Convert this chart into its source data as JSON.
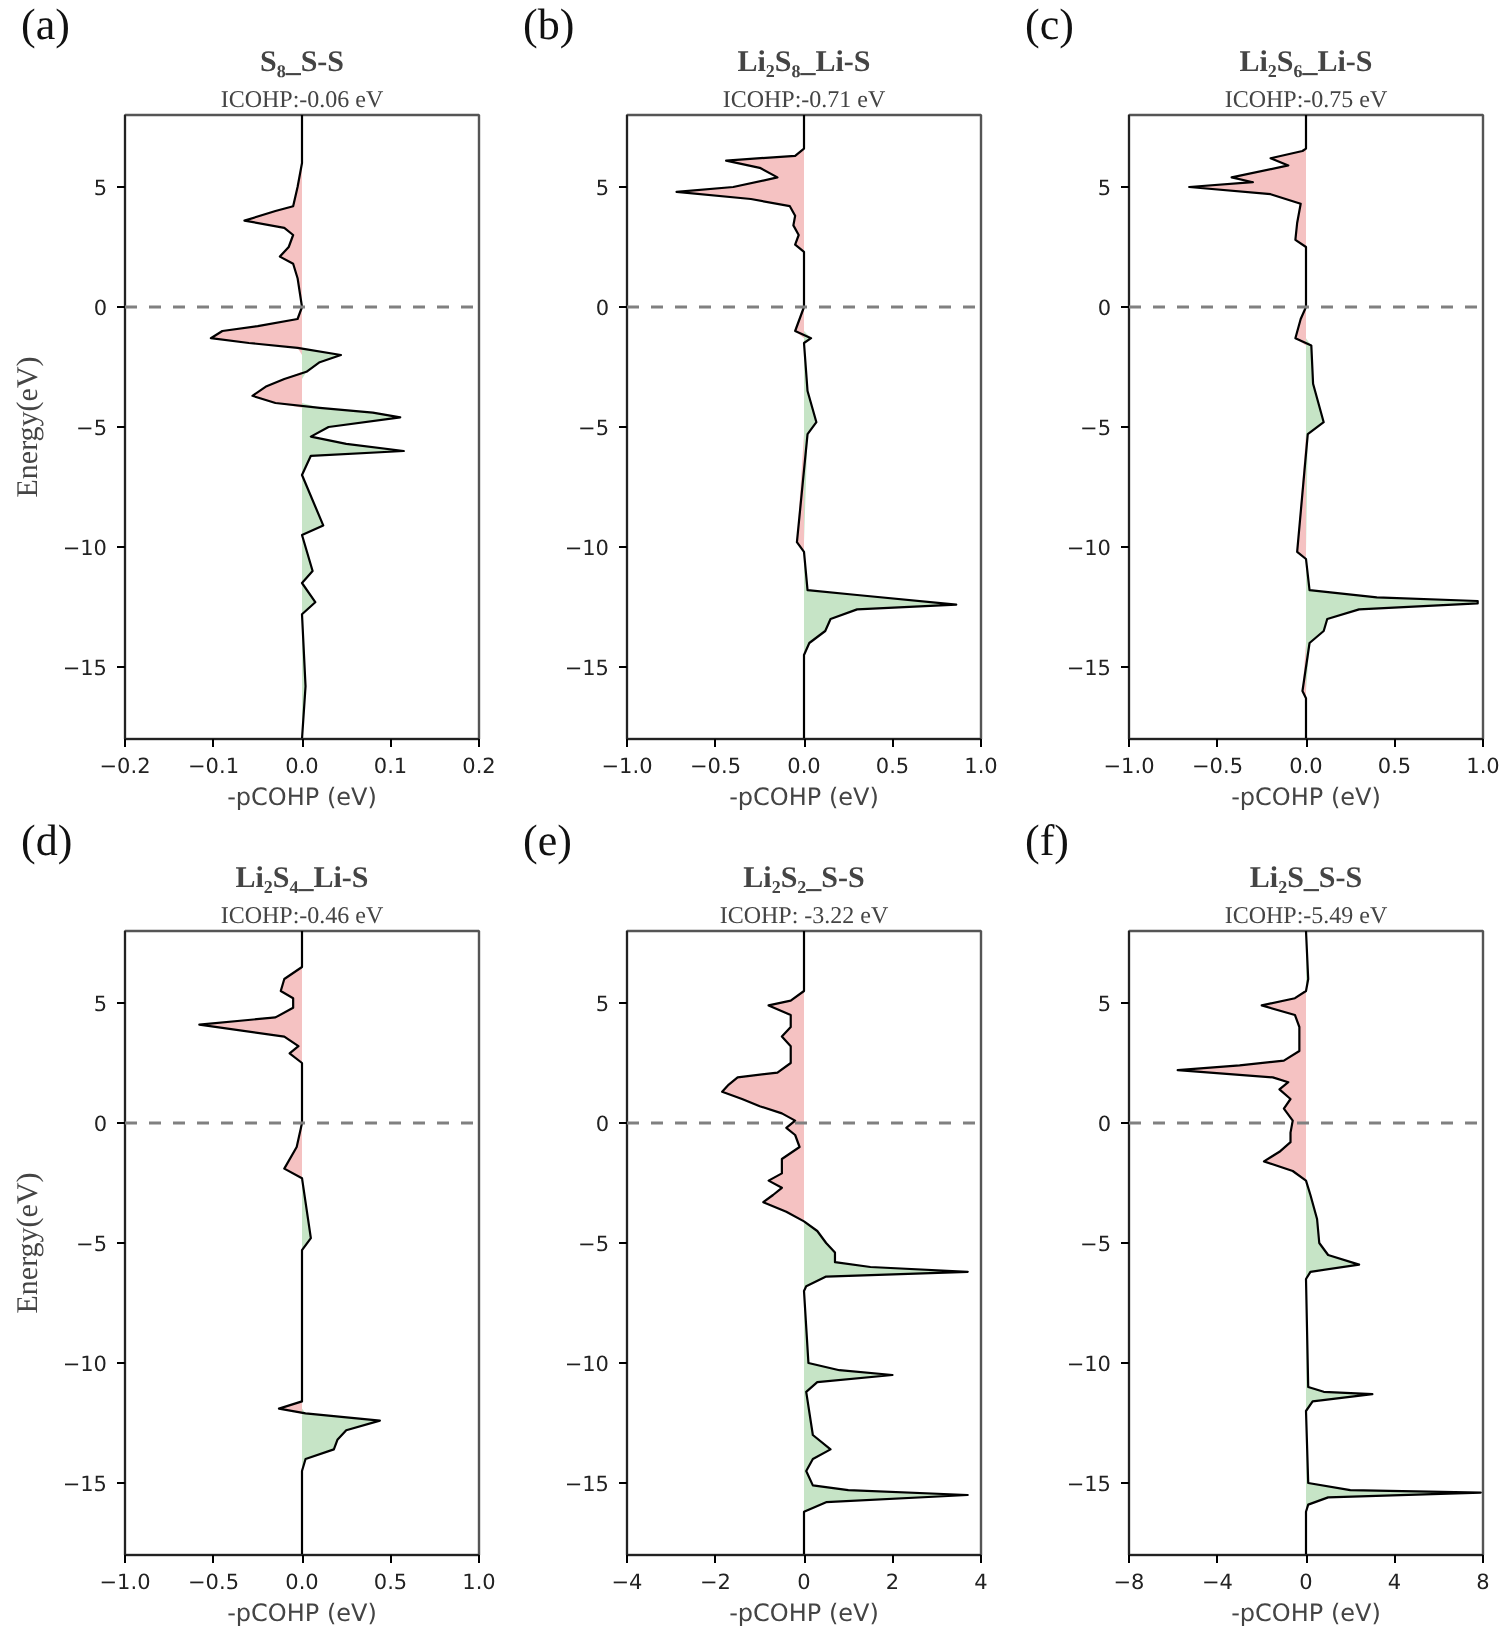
{
  "chart_data": [
    {
      "type": "area",
      "orientation": "horizontal",
      "title": "S₈_S-S",
      "subtitle": "ICOHP:-0.06 eV",
      "xlabel": "-pCOHP (eV)",
      "ylabel": "Energy(eV)",
      "annotations": [
        "(a)"
      ],
      "xlim": [
        -0.2,
        0.2
      ],
      "xticks": [
        -0.2,
        -0.1,
        {
          "value": 0,
          "label": "0.0"
        },
        0.1,
        0.2
      ],
      "ylim": [
        -18,
        8
      ],
      "yticks": [
        -15,
        -10,
        -5,
        0,
        5
      ],
      "ref_lines": [
        {
          "axis": "y",
          "value": 0,
          "color": "#808080",
          "line_style": "dashed"
        }
      ],
      "x": [
        8,
        6,
        5,
        4.2,
        4.0,
        3.6,
        3.3,
        3.0,
        2.5,
        2.1,
        1.8,
        1.2,
        0,
        -0.5,
        -0.8,
        -1.0,
        -1.3,
        -1.5,
        -1.7,
        -2.0,
        -2.3,
        -2.7,
        -3.0,
        -3.3,
        -3.7,
        -4.0,
        -4.2,
        -4.4,
        -4.6,
        -5.0,
        -5.4,
        -5.7,
        -6.0,
        -6.2,
        -7,
        -9.1,
        -9.5,
        -11,
        -11.5,
        -12.3,
        -12.8,
        -15.8,
        -18
      ],
      "series": [
        {
          "color": "#f5c2c2",
          "values": [
            0,
            0,
            -0.005,
            -0.01,
            -0.03,
            -0.065,
            -0.02,
            -0.01,
            -0.015,
            -0.025,
            -0.01,
            -0.005,
            0,
            -0.005,
            -0.05,
            -0.09,
            -0.103,
            -0.06,
            -0.005,
            0,
            0,
            0,
            -0.02,
            -0.04,
            -0.056,
            -0.03,
            0,
            0,
            0,
            0,
            0,
            0,
            0,
            0,
            0,
            0,
            0,
            0,
            0,
            0,
            0,
            0,
            0
          ]
        },
        {
          "color": "#c6e4c6",
          "values": [
            0,
            0,
            0,
            0,
            0,
            0,
            0,
            0,
            0,
            0,
            0,
            0,
            0,
            0,
            0,
            0,
            0,
            0,
            0,
            0.044,
            0.02,
            0.005,
            0,
            0,
            0,
            0,
            0.02,
            0.08,
            0.111,
            0.03,
            0.01,
            0.05,
            0.115,
            0.01,
            0,
            0.024,
            0,
            0.012,
            0,
            0.015,
            0,
            0.004,
            0
          ]
        },
        {
          "type": "line",
          "color": "#000000",
          "values": [
            0,
            0,
            -0.005,
            -0.01,
            -0.03,
            -0.065,
            -0.02,
            -0.01,
            -0.015,
            -0.025,
            -0.01,
            -0.005,
            0,
            -0.005,
            -0.05,
            -0.09,
            -0.103,
            -0.06,
            -0.005,
            0.044,
            0.02,
            0.005,
            -0.02,
            -0.04,
            -0.056,
            -0.03,
            0.02,
            0.08,
            0.111,
            0.03,
            0.01,
            0.05,
            0.115,
            0.01,
            0,
            0.024,
            0,
            0.012,
            0,
            0.015,
            0,
            0.004,
            0
          ]
        }
      ]
    },
    {
      "type": "area",
      "orientation": "horizontal",
      "title": "Li₂S₈_Li-S",
      "subtitle": "ICOHP:-0.71 eV",
      "xlabel": "-pCOHP (eV)",
      "annotations": [
        "(b)"
      ],
      "xlim": [
        -1,
        1
      ],
      "xticks": [
        {
          "value": -1,
          "label": "−1.0"
        },
        -0.5,
        {
          "value": 0,
          "label": "0.0"
        },
        0.5,
        {
          "value": 1,
          "label": "1.0"
        }
      ],
      "ylim": [
        -18,
        8
      ],
      "yticks": [
        -15,
        -10,
        -5,
        0,
        5
      ],
      "ref_lines": [
        {
          "axis": "y",
          "value": 0,
          "color": "#808080",
          "line_style": "dashed"
        }
      ],
      "x": [
        8,
        6.6,
        6.3,
        6.1,
        5.8,
        5.4,
        5.0,
        4.8,
        4.5,
        4.2,
        3.8,
        3.4,
        3.0,
        2.6,
        2.3,
        0,
        -1.0,
        -1.3,
        -1.5,
        -3.5,
        -4.8,
        -5.3,
        -9.8,
        -10.2,
        -11.8,
        -12.0,
        -12.4,
        -12.6,
        -13.0,
        -13.5,
        -14,
        -14.5,
        -18
      ],
      "series": [
        {
          "color": "#f5c2c2",
          "values": [
            0,
            0,
            -0.05,
            -0.44,
            -0.25,
            -0.15,
            -0.4,
            -0.72,
            -0.3,
            -0.08,
            -0.05,
            -0.06,
            -0.03,
            -0.05,
            0,
            0,
            -0.05,
            0,
            0,
            0,
            0,
            0,
            -0.04,
            0,
            0,
            0,
            0,
            0,
            0,
            0,
            0,
            0,
            0
          ]
        },
        {
          "color": "#c6e4c6",
          "values": [
            0,
            0,
            0,
            0,
            0,
            0,
            0,
            0,
            0,
            0,
            0,
            0,
            0,
            0,
            0,
            0,
            0,
            0.04,
            0,
            0.02,
            0.07,
            0.02,
            0,
            0,
            0.02,
            0.3,
            0.86,
            0.3,
            0.15,
            0.12,
            0.03,
            0,
            0
          ]
        },
        {
          "type": "line",
          "color": "#000000",
          "values": [
            0,
            0,
            -0.05,
            -0.44,
            -0.25,
            -0.15,
            -0.4,
            -0.72,
            -0.3,
            -0.08,
            -0.05,
            -0.06,
            -0.03,
            -0.05,
            0,
            0,
            -0.05,
            0.04,
            0,
            0.02,
            0.07,
            0.02,
            -0.04,
            0,
            0.02,
            0.3,
            0.86,
            0.3,
            0.15,
            0.12,
            0.03,
            0,
            0
          ]
        }
      ]
    },
    {
      "type": "area",
      "orientation": "horizontal",
      "title": "Li₂S₆_Li-S",
      "subtitle": "ICOHP:-0.75 eV",
      "xlabel": "-pCOHP (eV)",
      "annotations": [
        "(c)"
      ],
      "xlim": [
        -1,
        1
      ],
      "xticks": [
        {
          "value": -1,
          "label": "−1.0"
        },
        -0.5,
        {
          "value": 0,
          "label": "0.0"
        },
        0.5,
        {
          "value": 1,
          "label": "1.0"
        }
      ],
      "ylim": [
        -18,
        8
      ],
      "yticks": [
        -15,
        -10,
        -5,
        0,
        5
      ],
      "ref_lines": [
        {
          "axis": "y",
          "value": 0,
          "color": "#808080",
          "line_style": "dashed"
        }
      ],
      "x": [
        8,
        6.6,
        6.5,
        6.2,
        5.9,
        5.4,
        5.2,
        5.0,
        4.7,
        4.3,
        3.5,
        2.8,
        2.5,
        0,
        -0.5,
        -1.3,
        -1.6,
        -3.2,
        -4.8,
        -5.3,
        -10.2,
        -10.5,
        -11.8,
        -12.1,
        -12.25,
        -12.35,
        -12.6,
        -13.0,
        -13.5,
        -14.0,
        -16,
        -16.3,
        -18
      ],
      "series": [
        {
          "color": "#f5c2c2",
          "values": [
            0,
            0,
            -0.02,
            -0.2,
            -0.1,
            -0.42,
            -0.3,
            -0.66,
            -0.2,
            -0.03,
            -0.05,
            -0.06,
            0,
            0,
            -0.03,
            -0.06,
            0,
            0,
            0,
            0,
            -0.05,
            0,
            0,
            0,
            0,
            0,
            0,
            0,
            0,
            0,
            -0.02,
            0,
            0
          ]
        },
        {
          "color": "#c6e4c6",
          "values": [
            0,
            0,
            0,
            0,
            0,
            0,
            0,
            0,
            0,
            0,
            0,
            0,
            0,
            0,
            0,
            0,
            0.03,
            0.04,
            0.1,
            0.01,
            0,
            0,
            0.02,
            0.4,
            0.97,
            0.97,
            0.3,
            0.12,
            0.1,
            0.02,
            0,
            0,
            0
          ]
        },
        {
          "type": "line",
          "color": "#000000",
          "values": [
            0,
            0,
            -0.02,
            -0.2,
            -0.1,
            -0.42,
            -0.3,
            -0.66,
            -0.2,
            -0.03,
            -0.05,
            -0.06,
            0,
            0,
            -0.03,
            -0.06,
            0.03,
            0.04,
            0.1,
            0.01,
            -0.05,
            0,
            0.02,
            0.4,
            0.97,
            0.97,
            0.3,
            0.12,
            0.1,
            0.02,
            -0.02,
            0,
            0
          ]
        }
      ]
    },
    {
      "type": "area",
      "orientation": "horizontal",
      "title": "Li₂S₄_Li-S",
      "subtitle": "ICOHP:-0.46 eV",
      "xlabel": "-pCOHP (eV)",
      "ylabel": "Energy(eV)",
      "annotations": [
        "(d)"
      ],
      "xlim": [
        -1,
        1
      ],
      "xticks": [
        {
          "value": -1,
          "label": "−1.0"
        },
        -0.5,
        {
          "value": 0,
          "label": "0.0"
        },
        0.5,
        {
          "value": 1,
          "label": "1.0"
        }
      ],
      "ylim": [
        -18,
        8
      ],
      "yticks": [
        -15,
        -10,
        -5,
        0,
        5
      ],
      "ref_lines": [
        {
          "axis": "y",
          "value": 0,
          "color": "#808080",
          "line_style": "dashed"
        }
      ],
      "x": [
        8,
        6.5,
        6.0,
        5.5,
        5.2,
        4.8,
        4.4,
        4.1,
        3.6,
        3.2,
        2.9,
        2.5,
        0,
        -1.0,
        -1.9,
        -2.3,
        -4.8,
        -5.3,
        -11.6,
        -11.9,
        -12.1,
        -12.4,
        -12.8,
        -13.2,
        -13.6,
        -14.0,
        -14.5,
        -18
      ],
      "series": [
        {
          "color": "#f5c2c2",
          "values": [
            0,
            0,
            -0.1,
            -0.12,
            -0.05,
            -0.05,
            -0.15,
            -0.58,
            -0.1,
            -0.02,
            -0.07,
            0,
            0,
            -0.03,
            -0.1,
            0,
            0,
            0,
            0,
            -0.13,
            0,
            0,
            0,
            0,
            0,
            0,
            0,
            0
          ]
        },
        {
          "color": "#c6e4c6",
          "values": [
            0,
            0,
            0,
            0,
            0,
            0,
            0,
            0,
            0,
            0,
            0,
            0,
            0,
            0,
            0,
            0,
            0.05,
            0,
            0,
            0,
            0.02,
            0.44,
            0.25,
            0.2,
            0.18,
            0.02,
            0,
            0
          ]
        },
        {
          "type": "line",
          "color": "#000000",
          "values": [
            0,
            0,
            -0.1,
            -0.12,
            -0.05,
            -0.05,
            -0.15,
            -0.58,
            -0.1,
            -0.02,
            -0.07,
            0,
            0,
            -0.03,
            -0.1,
            0,
            0.05,
            0,
            0,
            -0.13,
            0.02,
            0.44,
            0.25,
            0.2,
            0.18,
            0.02,
            0,
            0
          ]
        }
      ]
    },
    {
      "type": "area",
      "orientation": "horizontal",
      "title": "Li₂S₂_S-S",
      "subtitle": "ICOHP: -3.22 eV",
      "xlabel": "-pCOHP (eV)",
      "annotations": [
        "(e)"
      ],
      "xlim": [
        -4,
        4
      ],
      "xticks": [
        -4,
        -2,
        0,
        2,
        4
      ],
      "ylim": [
        -18,
        8
      ],
      "yticks": [
        -15,
        -10,
        -5,
        0,
        5
      ],
      "ref_lines": [
        {
          "axis": "y",
          "value": 0,
          "color": "#808080",
          "line_style": "dashed"
        }
      ],
      "x": [
        8,
        5.5,
        5.1,
        4.9,
        4.5,
        4.0,
        3.6,
        3.2,
        2.5,
        2.1,
        1.9,
        1.6,
        1.3,
        1.0,
        0.7,
        0.4,
        0.1,
        -0.2,
        -0.5,
        -1,
        -1.5,
        -2.1,
        -2.4,
        -2.7,
        -3.0,
        -3.3,
        -3.7,
        -4.1,
        -4.5,
        -5.0,
        -5.4,
        -5.8,
        -6.0,
        -6.2,
        -6.4,
        -6.8,
        -7,
        -10,
        -10.3,
        -10.5,
        -10.8,
        -11.2,
        -13,
        -13.6,
        -14.0,
        -14.5,
        -15.1,
        -15.3,
        -15.5,
        -15.8,
        -16.2,
        -18
      ],
      "series": [
        {
          "color": "#f5c2c2",
          "values": [
            0,
            0,
            -0.3,
            -0.8,
            -0.3,
            -0.3,
            -0.5,
            -0.3,
            -0.3,
            -0.6,
            -1.5,
            -1.7,
            -1.85,
            -1.4,
            -1.0,
            -0.5,
            -0.2,
            -0.4,
            -0.2,
            -0.1,
            -0.5,
            -0.5,
            -0.8,
            -0.5,
            -0.7,
            -0.92,
            -0.4,
            0,
            0,
            0,
            0,
            0,
            0,
            0,
            0,
            0,
            0,
            0,
            0,
            0,
            0,
            0,
            0,
            0,
            0,
            0,
            0,
            0,
            0,
            0,
            0,
            0
          ]
        },
        {
          "color": "#c6e4c6",
          "values": [
            0,
            0,
            0,
            0,
            0,
            0,
            0,
            0,
            0,
            0,
            0,
            0,
            0,
            0,
            0,
            0,
            0,
            0,
            0,
            0,
            0,
            0,
            0,
            0,
            0,
            0,
            0,
            0,
            0.3,
            0.5,
            0.7,
            0.7,
            1.5,
            3.7,
            0.5,
            0.05,
            0,
            0.1,
            0.8,
            2.0,
            0.3,
            0.05,
            0.2,
            0.6,
            0.2,
            0.05,
            0.2,
            1.0,
            3.7,
            0.5,
            0,
            0
          ]
        },
        {
          "type": "line",
          "color": "#000000",
          "values": [
            0,
            0,
            -0.3,
            -0.8,
            -0.3,
            -0.3,
            -0.5,
            -0.3,
            -0.3,
            -0.6,
            -1.5,
            -1.7,
            -1.85,
            -1.4,
            -1.0,
            -0.5,
            -0.2,
            -0.4,
            -0.2,
            -0.1,
            -0.5,
            -0.5,
            -0.8,
            -0.5,
            -0.7,
            -0.92,
            -0.4,
            0,
            0.3,
            0.5,
            0.7,
            0.7,
            1.5,
            3.7,
            0.5,
            0.05,
            0,
            0.1,
            0.8,
            2.0,
            0.3,
            0.05,
            0.2,
            0.6,
            0.2,
            0.05,
            0.2,
            1.0,
            3.7,
            0.5,
            0,
            0
          ]
        }
      ]
    },
    {
      "type": "area",
      "orientation": "horizontal",
      "title": "Li₂S_S-S",
      "subtitle": "ICOHP:-5.49 eV",
      "xlabel": "-pCOHP (eV)",
      "annotations": [
        "(f)"
      ],
      "xlim": [
        -8,
        8
      ],
      "xticks": [
        -8,
        -4,
        0,
        4,
        8
      ],
      "ylim": [
        -18,
        8
      ],
      "yticks": [
        -15,
        -10,
        -5,
        0,
        5
      ],
      "ref_lines": [
        {
          "axis": "y",
          "value": 0,
          "color": "#808080",
          "line_style": "dashed"
        }
      ],
      "x": [
        8,
        6,
        5.5,
        5.2,
        4.9,
        4.5,
        4.0,
        3.0,
        2.6,
        2.4,
        2.2,
        1.9,
        1.7,
        1.4,
        1.0,
        0.6,
        0.1,
        -0.4,
        -0.8,
        -1.2,
        -1.6,
        -2.0,
        -2.4,
        -3,
        -4,
        -5,
        -5.5,
        -5.9,
        -6.2,
        -6.5,
        -11,
        -11.2,
        -11.3,
        -11.6,
        -12,
        -15,
        -15.3,
        -15.4,
        -15.6,
        -15.9,
        -16.2,
        -18
      ],
      "series": [
        {
          "color": "#f5c2c2",
          "values": [
            0,
            0,
            0,
            -0.5,
            -2.0,
            -0.5,
            -0.3,
            -0.3,
            -1.0,
            -3,
            -5.8,
            -1.5,
            -0.8,
            -1.2,
            -0.7,
            -1.0,
            -0.6,
            -0.7,
            -0.7,
            -1.2,
            -1.9,
            -0.6,
            0,
            0,
            0,
            0,
            0,
            0,
            0,
            0,
            0,
            0,
            0,
            0,
            0,
            0,
            0,
            0,
            0,
            0,
            0,
            0
          ]
        },
        {
          "color": "#c6e4c6",
          "values": [
            0,
            0.1,
            0,
            0,
            0,
            0,
            0,
            0,
            0,
            0,
            0,
            0,
            0,
            0,
            0,
            0,
            0,
            0,
            0,
            0,
            0,
            0,
            0,
            0.2,
            0.5,
            0.6,
            1.0,
            2.4,
            0.2,
            0,
            0.1,
            0.8,
            3.0,
            0.3,
            0,
            0.1,
            2,
            7.9,
            1.0,
            0.1,
            0,
            0
          ]
        },
        {
          "type": "line",
          "color": "#000000",
          "values": [
            0,
            0.1,
            0,
            -0.5,
            -2.0,
            -0.5,
            -0.3,
            -0.3,
            -1.0,
            -3,
            -5.8,
            -1.5,
            -0.8,
            -1.2,
            -0.7,
            -1.0,
            -0.6,
            -0.7,
            -0.7,
            -1.2,
            -1.9,
            -0.6,
            0,
            0.2,
            0.5,
            0.6,
            1.0,
            2.4,
            0.2,
            0,
            0.1,
            0.8,
            3.0,
            0.3,
            0,
            0.1,
            2,
            7.9,
            1.0,
            0.1,
            0,
            0
          ]
        }
      ]
    }
  ]
}
